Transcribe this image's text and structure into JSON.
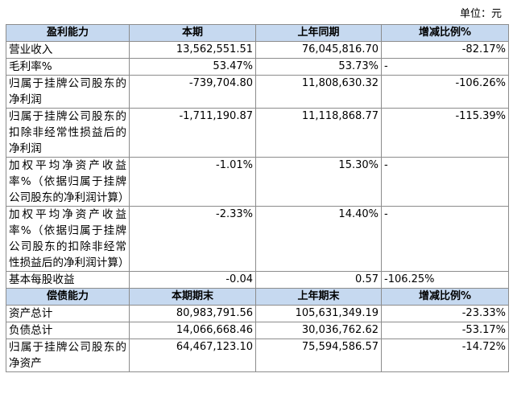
{
  "unit": "单位：元",
  "sections": [
    {
      "header": [
        "盈利能力",
        "本期",
        "上年同期",
        "增减比例%"
      ],
      "rows": [
        [
          "营业收入",
          "13,562,551.51",
          "76,045,816.70",
          "-82.17%"
        ],
        [
          "毛利率%",
          "53.47%",
          "53.73%",
          "-"
        ],
        [
          "归属于挂牌公司股东的净利润",
          "-739,704.80",
          "11,808,630.32",
          "-106.26%"
        ],
        [
          "归属于挂牌公司股东的扣除非经常性损益后的净利润",
          "-1,711,190.87",
          "11,118,868.77",
          "-115.39%"
        ],
        [
          "加权平均净资产收益率%（依据归属于挂牌公司股东的净利润计算）",
          "-1.01%",
          "15.30%",
          "-"
        ],
        [
          "加权平均净资产收益率%（依据归属于挂牌公司股东的扣除非经常性损益后的净利润计算）",
          "-2.33%",
          "14.40%",
          "-"
        ],
        [
          "基本每股收益",
          "-0.04",
          "0.57",
          "-106.25%"
        ]
      ]
    },
    {
      "header": [
        "偿债能力",
        "本期期末",
        "上年期末",
        "增减比例%"
      ],
      "rows": [
        [
          "资产总计",
          "80,983,791.56",
          "105,631,349.19",
          "-23.33%"
        ],
        [
          "负债总计",
          "14,066,668.46",
          "30,036,762.62",
          "-53.17%"
        ],
        [
          "归属于挂牌公司股东的净资产",
          "64,467,123.10",
          "75,594,586.57",
          "-14.72%"
        ]
      ]
    }
  ]
}
